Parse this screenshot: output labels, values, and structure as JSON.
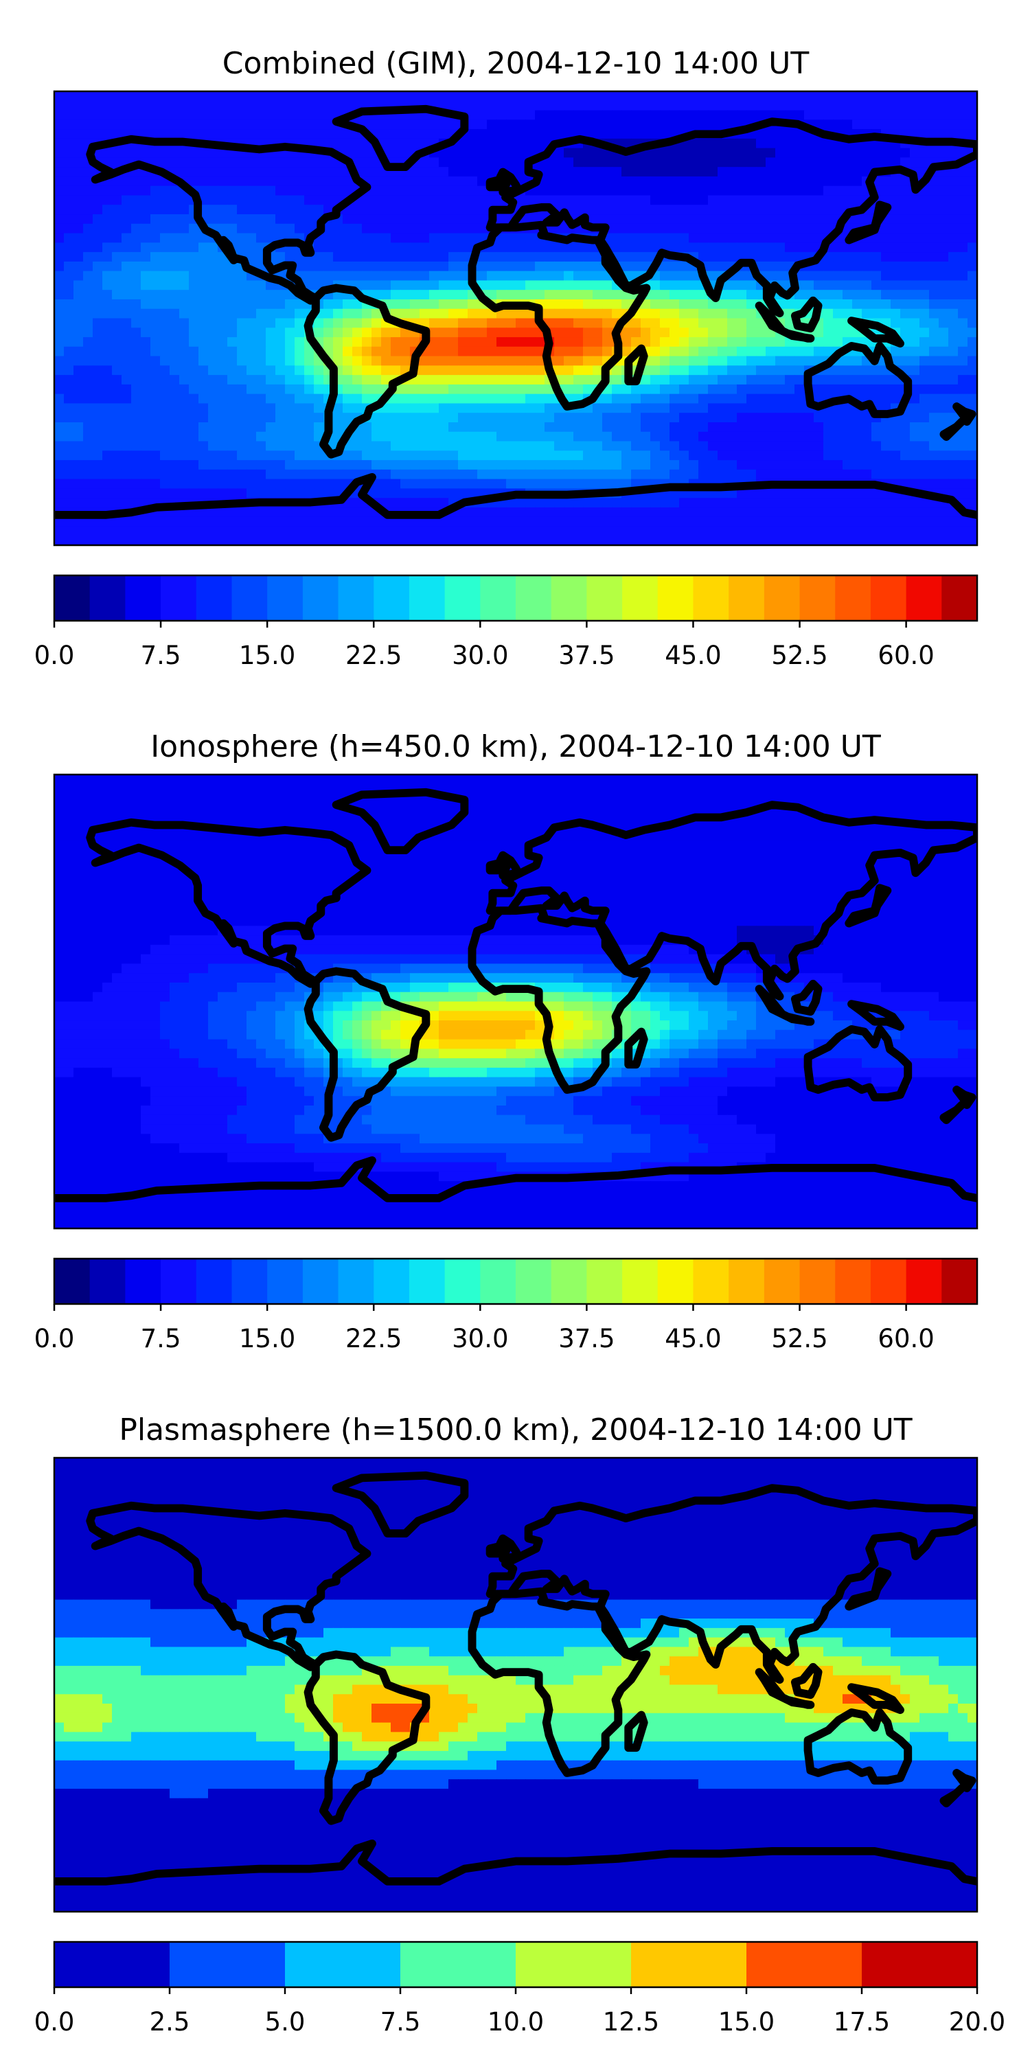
{
  "chart_data": [
    {
      "type": "heatmap",
      "title": "Combined (GIM), 2004-12-10 14:00 UT",
      "colorbar": {
        "min": 0,
        "max": 65,
        "step": 2.5,
        "ticks": [
          "0.0",
          "7.5",
          "15.0",
          "22.5",
          "30.0",
          "37.5",
          "45.0",
          "52.5",
          "60.0"
        ],
        "colors": [
          "#00007f",
          "#0000b4",
          "#0000f1",
          "#0d0dff",
          "#0028ff",
          "#0048ff",
          "#0066ff",
          "#0086ff",
          "#00a4ff",
          "#00c4ff",
          "#0de4f3",
          "#2affd0",
          "#4effa8",
          "#6eff89",
          "#92ff64",
          "#b4ff43",
          "#daff1d",
          "#f8f500",
          "#ffd700",
          "#ffb900",
          "#ff9800",
          "#ff7a00",
          "#ff5900",
          "#ff3b00",
          "#f10800",
          "#b40000",
          "#7f0000"
        ]
      },
      "field": {
        "base": 9,
        "blobs": [
          {
            "lon": 20,
            "lat": -8,
            "amp": 37,
            "slon": 40,
            "slat": 16
          },
          {
            "lon": -25,
            "lat": -12,
            "amp": 22,
            "slon": 35,
            "slat": 14
          },
          {
            "lon": -55,
            "lat": -15,
            "amp": 18,
            "slon": 22,
            "slat": 15
          },
          {
            "lon": 95,
            "lat": -2,
            "amp": 18,
            "slon": 45,
            "slat": 12
          },
          {
            "lon": 150,
            "lat": -8,
            "amp": 8,
            "slon": 30,
            "slat": 10
          },
          {
            "lon": -110,
            "lat": -8,
            "amp": 9,
            "slon": 30,
            "slat": 25
          },
          {
            "lon": -150,
            "lat": 15,
            "amp": 7,
            "slon": 20,
            "slat": 8
          },
          {
            "lon": -40,
            "lat": -50,
            "amp": 11,
            "slon": 55,
            "slat": 9
          },
          {
            "lon": 30,
            "lat": -58,
            "amp": 9,
            "slon": 40,
            "slat": 8
          },
          {
            "lon": 170,
            "lat": -45,
            "amp": 7,
            "slon": 25,
            "slat": 10
          },
          {
            "lon": -120,
            "lat": 30,
            "amp": 5,
            "slon": 25,
            "slat": 12
          },
          {
            "lon": 60,
            "lat": 65,
            "amp": -5,
            "slon": 60,
            "slat": 12
          },
          {
            "lon": 80,
            "lat": -52,
            "amp": -4,
            "slon": 20,
            "slat": 8
          }
        ]
      }
    },
    {
      "type": "heatmap",
      "title": "Ionosphere  (h=450.0 km), 2004-12-10 14:00 UT",
      "colorbar": {
        "min": 0,
        "max": 65,
        "step": 2.5,
        "ticks": [
          "0.0",
          "7.5",
          "15.0",
          "22.5",
          "30.0",
          "37.5",
          "45.0",
          "52.5",
          "60.0"
        ],
        "colors": [
          "#00007f",
          "#0000b4",
          "#0000f1",
          "#0d0dff",
          "#0028ff",
          "#0048ff",
          "#0066ff",
          "#0086ff",
          "#00a4ff",
          "#00c4ff",
          "#0de4f3",
          "#2affd0",
          "#4effa8",
          "#6eff89",
          "#92ff64",
          "#b4ff43",
          "#daff1d",
          "#f8f500",
          "#ffd700",
          "#ffb900",
          "#ff9800",
          "#ff7a00",
          "#ff5900",
          "#ff3b00",
          "#f10800",
          "#b40000",
          "#7f0000"
        ]
      },
      "field": {
        "base": 6,
        "blobs": [
          {
            "lon": 15,
            "lat": -10,
            "amp": 30,
            "slon": 35,
            "slat": 14
          },
          {
            "lon": -50,
            "lat": -12,
            "amp": 20,
            "slon": 28,
            "slat": 15
          },
          {
            "lon": -20,
            "lat": -12,
            "amp": 14,
            "slon": 30,
            "slat": 14
          },
          {
            "lon": 80,
            "lat": -5,
            "amp": 10,
            "slon": 30,
            "slat": 12
          },
          {
            "lon": 150,
            "lat": -15,
            "amp": 6,
            "slon": 30,
            "slat": 10
          },
          {
            "lon": -40,
            "lat": -50,
            "amp": 8,
            "slon": 55,
            "slat": 9
          },
          {
            "lon": 30,
            "lat": -58,
            "amp": 6,
            "slon": 40,
            "slat": 8
          },
          {
            "lon": -110,
            "lat": -5,
            "amp": 6,
            "slon": 30,
            "slat": 20
          },
          {
            "lon": 100,
            "lat": 20,
            "amp": -3,
            "slon": 15,
            "slat": 8
          }
        ]
      }
    },
    {
      "type": "heatmap",
      "title": "Plasmasphere (h=1500.0 km), 2004-12-10 14:00 UT",
      "colorbar": {
        "min": 0,
        "max": 20,
        "step": 2.5,
        "ticks": [
          "0.0",
          "2.5",
          "5.0",
          "7.5",
          "10.0",
          "12.5",
          "15.0",
          "17.5",
          "20.0"
        ],
        "colors": [
          "#0000c8",
          "#0050ff",
          "#00c0ff",
          "#50ffa8",
          "#bcff3b",
          "#ffc800",
          "#ff5000",
          "#c80000"
        ]
      },
      "field": {
        "base": 1.2,
        "blobs": [
          {
            "lon": 0,
            "lat": -5,
            "amp": 9,
            "slon": 300,
            "slat": 20
          },
          {
            "lon": -45,
            "lat": -15,
            "amp": 6.5,
            "slon": 22,
            "slat": 12
          },
          {
            "lon": 85,
            "lat": 10,
            "amp": 6.5,
            "slon": 28,
            "slat": 9
          },
          {
            "lon": 135,
            "lat": -5,
            "amp": 5.5,
            "slon": 18,
            "slat": 8
          },
          {
            "lon": -170,
            "lat": -15,
            "amp": 3,
            "slon": 12,
            "slat": 8
          },
          {
            "lon": 10,
            "lat": -52,
            "amp": -4,
            "slon": 45,
            "slat": 10
          },
          {
            "lon": -120,
            "lat": 5,
            "amp": -1.5,
            "slon": 20,
            "slat": 15
          }
        ]
      }
    }
  ]
}
